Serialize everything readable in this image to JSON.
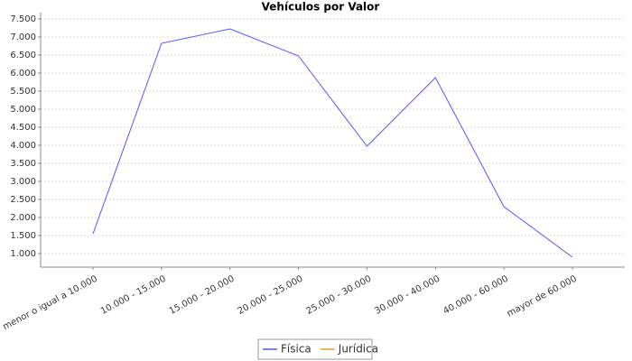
{
  "chart_data": {
    "type": "line",
    "title": "Vehículos por Valor",
    "categories": [
      "menor o igual a 10.000",
      "10.000 - 15.000",
      "15.000 - 20.000",
      "20.000 - 25.000",
      "25.000 - 30.000",
      "30.000 - 40.000",
      "40.000 - 60.000",
      "mayor de 60.000"
    ],
    "series": [
      {
        "name": "Física",
        "color": "#5555ff",
        "values": [
          1550,
          6825,
          7225,
          6475,
          3975,
          5875,
          2300,
          900
        ]
      },
      {
        "name": "Jurídica",
        "color": "#e8a020",
        "values": [
          null,
          null,
          null,
          null,
          null,
          null,
          null,
          null
        ]
      }
    ],
    "ylim": [
      625,
      7675
    ],
    "yticks": [
      {
        "value": 1000,
        "label": "1.000"
      },
      {
        "value": 1500,
        "label": "1.500"
      },
      {
        "value": 2000,
        "label": "2.000"
      },
      {
        "value": 2500,
        "label": "2.500"
      },
      {
        "value": 3000,
        "label": "3.000"
      },
      {
        "value": 3500,
        "label": "3.500"
      },
      {
        "value": 4000,
        "label": "4.000"
      },
      {
        "value": 4500,
        "label": "4.500"
      },
      {
        "value": 5000,
        "label": "5.000"
      },
      {
        "value": 5500,
        "label": "5.500"
      },
      {
        "value": 6000,
        "label": "6.000"
      },
      {
        "value": 6500,
        "label": "6.500"
      },
      {
        "value": 7000,
        "label": "7.000"
      },
      {
        "value": 7500,
        "label": "7.500"
      }
    ],
    "grid": true,
    "legend": "bottom"
  }
}
